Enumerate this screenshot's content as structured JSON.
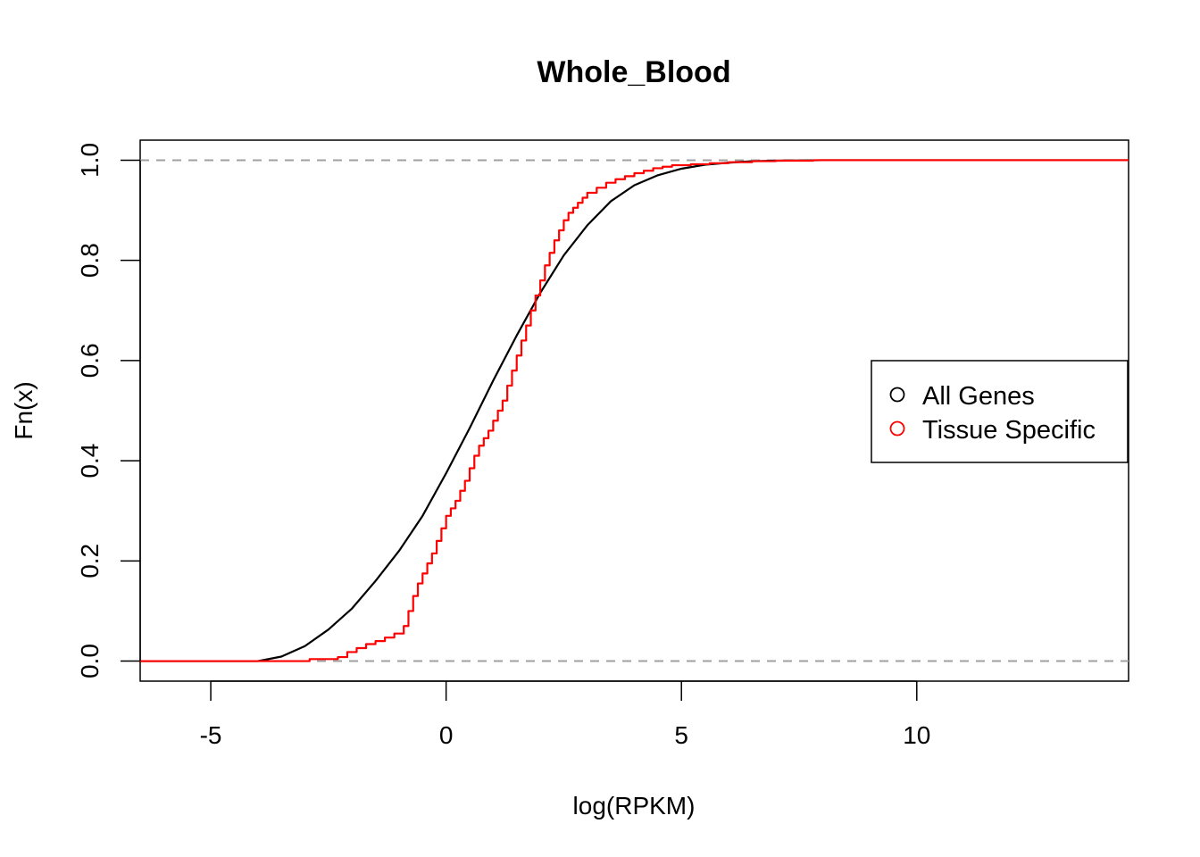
{
  "chart_data": {
    "type": "line",
    "title": "Whole_Blood",
    "xlabel": "log(RPKM)",
    "ylabel": "Fn(x)",
    "xlim": [
      -6.5,
      14.5
    ],
    "ylim": [
      -0.04,
      1.04
    ],
    "x_ticks": [
      -5,
      0,
      5,
      10
    ],
    "x_tick_labels": [
      "-5",
      "0",
      "5",
      "10"
    ],
    "y_ticks": [
      0,
      0.2,
      0.4,
      0.6,
      0.8,
      1.0
    ],
    "y_tick_labels": [
      "0.0",
      "0.2",
      "0.4",
      "0.6",
      "0.8",
      "1.0"
    ],
    "reference_lines": [
      0,
      1
    ],
    "legend_position": "right",
    "grid": false,
    "series": [
      {
        "name": "All Genes",
        "color": "#000000",
        "step": false,
        "x": [
          -6.5,
          -4.5,
          -4.0,
          -3.5,
          -3.0,
          -2.5,
          -2.0,
          -1.5,
          -1.0,
          -0.5,
          0.0,
          0.5,
          1.0,
          1.5,
          2.0,
          2.5,
          3.0,
          3.5,
          4.0,
          4.5,
          5.0,
          5.5,
          6.0,
          6.5,
          7.0,
          8.0,
          10.0,
          14.5
        ],
        "y": [
          0.0,
          0.0,
          0.0,
          0.009,
          0.03,
          0.063,
          0.105,
          0.16,
          0.22,
          0.29,
          0.375,
          0.465,
          0.56,
          0.65,
          0.735,
          0.81,
          0.87,
          0.918,
          0.95,
          0.97,
          0.983,
          0.991,
          0.995,
          0.998,
          0.999,
          1.0,
          1.0,
          1.0
        ]
      },
      {
        "name": "Tissue Specific",
        "color": "#ff0000",
        "step": true,
        "x": [
          -6.5,
          -3.7,
          -2.9,
          -2.3,
          -2.1,
          -1.9,
          -1.7,
          -1.5,
          -1.3,
          -1.1,
          -0.9,
          -0.8,
          -0.7,
          -0.6,
          -0.5,
          -0.4,
          -0.3,
          -0.2,
          -0.1,
          0.0,
          0.1,
          0.2,
          0.3,
          0.4,
          0.5,
          0.6,
          0.7,
          0.8,
          0.9,
          1.0,
          1.1,
          1.2,
          1.3,
          1.4,
          1.5,
          1.6,
          1.7,
          1.8,
          1.9,
          2.0,
          2.1,
          2.2,
          2.3,
          2.4,
          2.5,
          2.6,
          2.7,
          2.8,
          2.9,
          3.0,
          3.2,
          3.4,
          3.6,
          3.8,
          4.0,
          4.2,
          4.4,
          4.6,
          4.8,
          5.2,
          5.6,
          6.0,
          6.5,
          7.0,
          7.5,
          7.8,
          14.5
        ],
        "y": [
          0.0,
          0.0,
          0.004,
          0.008,
          0.018,
          0.026,
          0.034,
          0.04,
          0.047,
          0.055,
          0.07,
          0.1,
          0.13,
          0.155,
          0.175,
          0.195,
          0.215,
          0.24,
          0.265,
          0.29,
          0.305,
          0.32,
          0.34,
          0.36,
          0.385,
          0.41,
          0.43,
          0.445,
          0.46,
          0.48,
          0.5,
          0.52,
          0.55,
          0.58,
          0.61,
          0.64,
          0.67,
          0.7,
          0.73,
          0.76,
          0.79,
          0.815,
          0.84,
          0.86,
          0.88,
          0.895,
          0.905,
          0.915,
          0.925,
          0.935,
          0.945,
          0.955,
          0.962,
          0.968,
          0.974,
          0.979,
          0.984,
          0.987,
          0.99,
          0.992,
          0.994,
          0.996,
          0.998,
          0.999,
          0.999,
          1.0,
          1.0
        ]
      }
    ]
  }
}
